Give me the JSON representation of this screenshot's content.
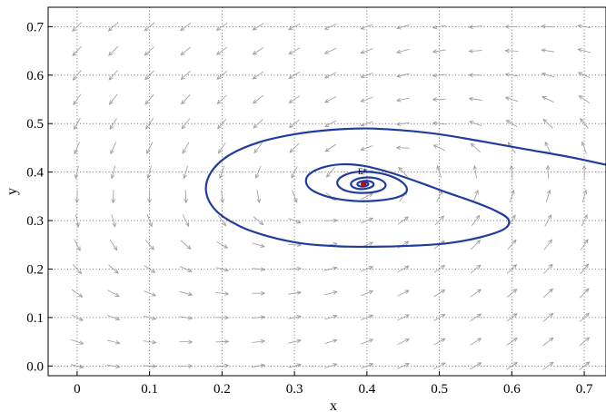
{
  "chart_data": {
    "type": "phase-portrait",
    "xlabel": "x",
    "ylabel": "y",
    "xlim": [
      -0.04,
      0.73
    ],
    "ylim": [
      -0.02,
      0.74
    ],
    "xticks": [
      0,
      0.1,
      0.2,
      0.3,
      0.4,
      0.5,
      0.6,
      0.7
    ],
    "xtick_labels": [
      "0",
      "0.1",
      "0.2",
      "0.3",
      "0.4",
      "0.5",
      "0.6",
      "0.7"
    ],
    "yticks": [
      0.0,
      0.1,
      0.2,
      0.3,
      0.4,
      0.5,
      0.6,
      0.7
    ],
    "ytick_labels": [
      "0.0",
      "0.1",
      "0.2",
      "0.3",
      "0.4",
      "0.5",
      "0.6",
      "0.7"
    ],
    "grid": true,
    "grid_style": "dotted",
    "direction_field": {
      "arrow_color": "#9a9a9a",
      "x": [
        0,
        0.05,
        0.1,
        0.15,
        0.2,
        0.25,
        0.3,
        0.35,
        0.4,
        0.45,
        0.5,
        0.55,
        0.6,
        0.65,
        0.7
      ],
      "y": [
        0.0,
        0.05,
        0.1,
        0.15,
        0.2,
        0.25,
        0.3,
        0.35,
        0.4,
        0.45,
        0.5,
        0.55,
        0.6,
        0.65,
        0.7
      ]
    },
    "equilibrium": {
      "label": "E*",
      "x": 0.395,
      "y": 0.375,
      "color": "#cc0000"
    },
    "trajectory": {
      "color": "#1f3c9e",
      "start": [
        0.73,
        0.415
      ],
      "points": [
        [
          0.73,
          0.415
        ],
        [
          0.68,
          0.431
        ],
        [
          0.62,
          0.447
        ],
        [
          0.56,
          0.463
        ],
        [
          0.5,
          0.478
        ],
        [
          0.45,
          0.486
        ],
        [
          0.4,
          0.49
        ],
        [
          0.35,
          0.487
        ],
        [
          0.3,
          0.478
        ],
        [
          0.25,
          0.461
        ],
        [
          0.21,
          0.435
        ],
        [
          0.185,
          0.4
        ],
        [
          0.178,
          0.36
        ],
        [
          0.192,
          0.32
        ],
        [
          0.225,
          0.288
        ],
        [
          0.265,
          0.267
        ],
        [
          0.31,
          0.253
        ],
        [
          0.36,
          0.247
        ],
        [
          0.41,
          0.246
        ],
        [
          0.46,
          0.248
        ],
        [
          0.51,
          0.253
        ],
        [
          0.555,
          0.265
        ],
        [
          0.59,
          0.283
        ],
        [
          0.595,
          0.303
        ],
        [
          0.575,
          0.322
        ],
        [
          0.545,
          0.34
        ],
        [
          0.51,
          0.358
        ],
        [
          0.47,
          0.38
        ],
        [
          0.43,
          0.4
        ],
        [
          0.395,
          0.413
        ],
        [
          0.365,
          0.416
        ],
        [
          0.338,
          0.409
        ],
        [
          0.32,
          0.395
        ],
        [
          0.316,
          0.379
        ],
        [
          0.323,
          0.364
        ],
        [
          0.34,
          0.352
        ],
        [
          0.362,
          0.344
        ],
        [
          0.388,
          0.34
        ],
        [
          0.413,
          0.341
        ],
        [
          0.437,
          0.346
        ],
        [
          0.452,
          0.355
        ],
        [
          0.455,
          0.367
        ],
        [
          0.448,
          0.38
        ],
        [
          0.434,
          0.391
        ],
        [
          0.417,
          0.398
        ],
        [
          0.398,
          0.401
        ],
        [
          0.38,
          0.399
        ],
        [
          0.367,
          0.392
        ],
        [
          0.36,
          0.383
        ],
        [
          0.36,
          0.373
        ],
        [
          0.367,
          0.364
        ],
        [
          0.378,
          0.359
        ],
        [
          0.392,
          0.357
        ],
        [
          0.406,
          0.358
        ],
        [
          0.418,
          0.362
        ],
        [
          0.425,
          0.369
        ],
        [
          0.425,
          0.377
        ],
        [
          0.419,
          0.384
        ],
        [
          0.41,
          0.388
        ],
        [
          0.399,
          0.389
        ],
        [
          0.389,
          0.387
        ],
        [
          0.381,
          0.382
        ],
        [
          0.378,
          0.376
        ],
        [
          0.38,
          0.37
        ],
        [
          0.386,
          0.366
        ],
        [
          0.394,
          0.365
        ],
        [
          0.402,
          0.367
        ],
        [
          0.408,
          0.371
        ],
        [
          0.409,
          0.376
        ],
        [
          0.406,
          0.38
        ],
        [
          0.4,
          0.382
        ],
        [
          0.393,
          0.381
        ],
        [
          0.388,
          0.378
        ],
        [
          0.387,
          0.374
        ],
        [
          0.39,
          0.371
        ],
        [
          0.395,
          0.37
        ],
        [
          0.4,
          0.372
        ],
        [
          0.402,
          0.375
        ],
        [
          0.4,
          0.378
        ],
        [
          0.396,
          0.378
        ],
        [
          0.393,
          0.376
        ],
        [
          0.394,
          0.374
        ],
        [
          0.397,
          0.374
        ],
        [
          0.398,
          0.376
        ],
        [
          0.396,
          0.376
        ]
      ]
    }
  }
}
